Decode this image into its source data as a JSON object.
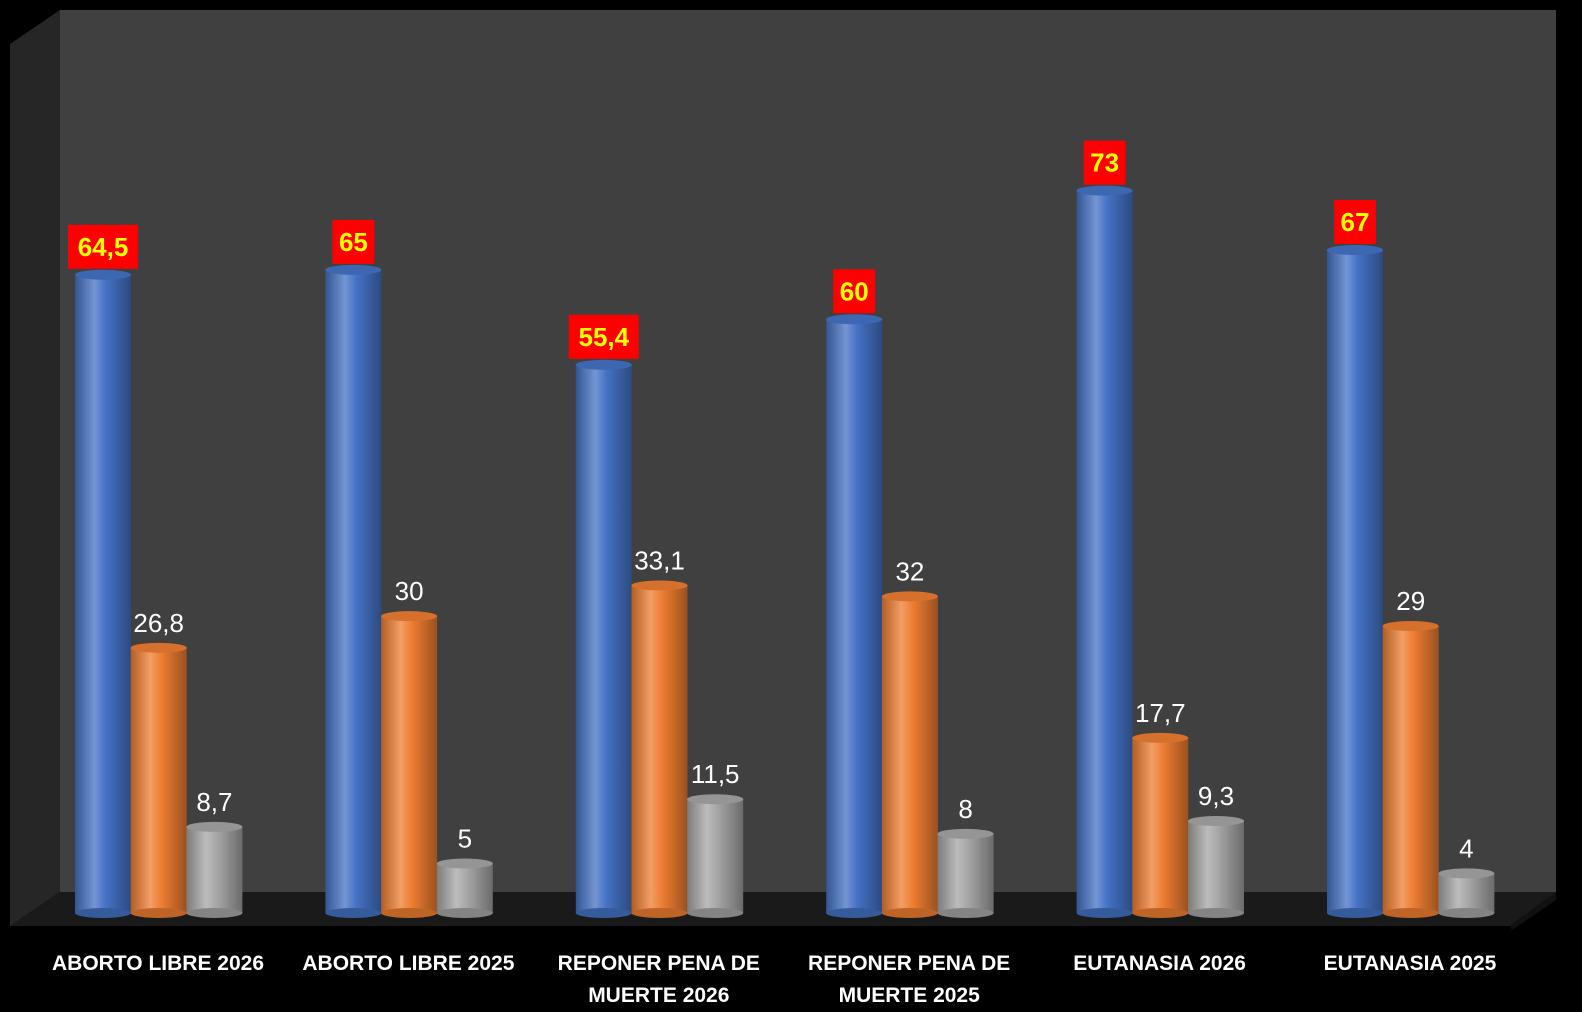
{
  "chart_data": {
    "type": "bar",
    "style": "3d-cylinder",
    "categories": [
      "ABORTO LIBRE 2026",
      "ABORTO LIBRE 2025",
      "REPONER PENA DE MUERTE 2026",
      "REPONER PENA DE MUERTE 2025",
      "EUTANASIA 2026",
      "EUTANASIA 2025"
    ],
    "series": [
      {
        "values": [
          64.5,
          65,
          55.4,
          60,
          73,
          67
        ],
        "labels": [
          "64,5",
          "65",
          "55,4",
          "60",
          "73",
          "67"
        ],
        "color": "#4472C4"
      },
      {
        "values": [
          26.8,
          30,
          33.1,
          32,
          17.7,
          29
        ],
        "labels": [
          "26,8",
          "30",
          "33,1",
          "32",
          "17,7",
          "29"
        ],
        "color": "#ED7D31"
      },
      {
        "values": [
          8.7,
          5,
          11.5,
          8,
          9.3,
          4
        ],
        "labels": [
          "8,7",
          "5",
          "11,5",
          "8",
          "9,3",
          "4"
        ],
        "color": "#A5A5A5"
      }
    ],
    "highlight_label_bg": "#FF0000",
    "highlight_label_color": "#FFFF00",
    "background": "#404040",
    "legend": "none",
    "grid": false
  }
}
